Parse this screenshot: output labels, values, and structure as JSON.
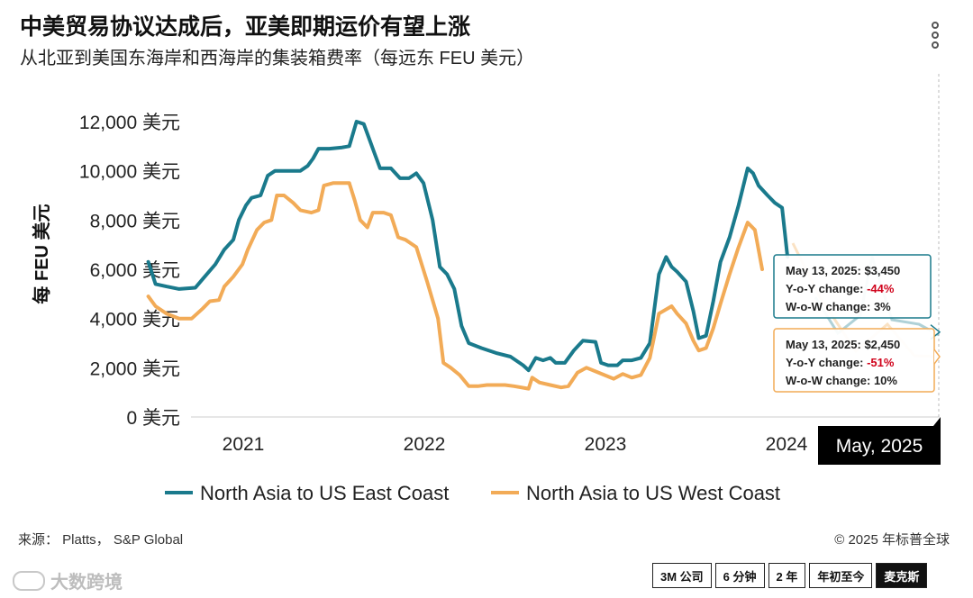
{
  "header": {
    "title": "中美贸易协议达成后，亚美即期运价有望上涨",
    "subtitle": "从北亚到美国东海岸和西海岸的集装箱费率（每远东 FEU 美元）"
  },
  "chart_data": {
    "type": "line",
    "ylabel": "每 FEU 美元",
    "xlabel": "",
    "ylim": [
      0,
      12000
    ],
    "yticks": [
      {
        "value": 0,
        "label": "0 美元"
      },
      {
        "value": 2000,
        "label": "2,000 美元"
      },
      {
        "value": 4000,
        "label": "4,000 美元"
      },
      {
        "value": 6000,
        "label": "6,000 美元"
      },
      {
        "value": 8000,
        "label": "8,000 美元"
      },
      {
        "value": 10000,
        "label": "10,000 美元"
      },
      {
        "value": 12000,
        "label": "12,000 美元"
      }
    ],
    "xlim": [
      2020.55,
      2025.37
    ],
    "xticks": [
      {
        "value": 2021,
        "label": "2021"
      },
      {
        "value": 2022,
        "label": "2022"
      },
      {
        "value": 2023,
        "label": "2023"
      },
      {
        "value": 2024,
        "label": "2024"
      }
    ],
    "crosshair_label": "May, 2025",
    "legend_position": "bottom",
    "colors": {
      "east": "#1a7a8c",
      "west": "#f2ab57"
    },
    "series": [
      {
        "name": "North Asia to US East Coast",
        "key": "east",
        "points": [
          [
            2020.58,
            6300
          ],
          [
            2020.62,
            5400
          ],
          [
            2020.68,
            5300
          ],
          [
            2020.75,
            5200
          ],
          [
            2020.84,
            5250
          ],
          [
            2020.88,
            5600
          ],
          [
            2020.95,
            6200
          ],
          [
            2021.0,
            6800
          ],
          [
            2021.05,
            7200
          ],
          [
            2021.08,
            8000
          ],
          [
            2021.12,
            8600
          ],
          [
            2021.15,
            8900
          ],
          [
            2021.2,
            9000
          ],
          [
            2021.24,
            9800
          ],
          [
            2021.28,
            10000
          ],
          [
            2021.35,
            10000
          ],
          [
            2021.42,
            10000
          ],
          [
            2021.46,
            10200
          ],
          [
            2021.49,
            10500
          ],
          [
            2021.52,
            10900
          ],
          [
            2021.58,
            10900
          ],
          [
            2021.65,
            10950
          ],
          [
            2021.69,
            11000
          ],
          [
            2021.73,
            12000
          ],
          [
            2021.77,
            11900
          ],
          [
            2021.8,
            11300
          ],
          [
            2021.83,
            10700
          ],
          [
            2021.86,
            10100
          ],
          [
            2021.92,
            10100
          ],
          [
            2021.97,
            9700
          ],
          [
            2022.02,
            9700
          ],
          [
            2022.06,
            9900
          ],
          [
            2022.1,
            9500
          ],
          [
            2022.15,
            8000
          ],
          [
            2022.19,
            6100
          ],
          [
            2022.23,
            5800
          ],
          [
            2022.27,
            5200
          ],
          [
            2022.31,
            3700
          ],
          [
            2022.35,
            3000
          ],
          [
            2022.42,
            2800
          ],
          [
            2022.5,
            2600
          ],
          [
            2022.58,
            2450
          ],
          [
            2022.65,
            2100
          ],
          [
            2022.68,
            1900
          ],
          [
            2022.72,
            2400
          ],
          [
            2022.76,
            2300
          ],
          [
            2022.8,
            2400
          ],
          [
            2022.83,
            2200
          ],
          [
            2022.88,
            2200
          ],
          [
            2022.93,
            2700
          ],
          [
            2022.98,
            3100
          ],
          [
            2023.05,
            3050
          ],
          [
            2023.08,
            2200
          ],
          [
            2023.12,
            2100
          ],
          [
            2023.17,
            2100
          ],
          [
            2023.2,
            2300
          ],
          [
            2023.25,
            2300
          ],
          [
            2023.3,
            2400
          ],
          [
            2023.35,
            3000
          ],
          [
            2023.4,
            5800
          ],
          [
            2023.44,
            6500
          ],
          [
            2023.47,
            6100
          ],
          [
            2023.5,
            5900
          ],
          [
            2023.55,
            5500
          ],
          [
            2023.59,
            4300
          ],
          [
            2023.62,
            3200
          ],
          [
            2023.66,
            3300
          ],
          [
            2023.7,
            4700
          ],
          [
            2023.74,
            6300
          ],
          [
            2023.79,
            7300
          ],
          [
            2023.84,
            8600
          ],
          [
            2023.89,
            10100
          ],
          [
            2023.92,
            9900
          ],
          [
            2023.95,
            9400
          ],
          [
            2024.0,
            9000
          ],
          [
            2024.04,
            8700
          ],
          [
            2024.08,
            8500
          ],
          [
            2024.11,
            6500
          ]
        ]
      },
      {
        "name": "North Asia to US West Coast",
        "key": "west",
        "points": [
          [
            2020.58,
            4900
          ],
          [
            2020.62,
            4500
          ],
          [
            2020.68,
            4200
          ],
          [
            2020.75,
            4000
          ],
          [
            2020.82,
            4000
          ],
          [
            2020.88,
            4400
          ],
          [
            2020.92,
            4700
          ],
          [
            2020.97,
            4750
          ],
          [
            2021.0,
            5300
          ],
          [
            2021.05,
            5700
          ],
          [
            2021.1,
            6200
          ],
          [
            2021.13,
            6800
          ],
          [
            2021.18,
            7600
          ],
          [
            2021.22,
            7900
          ],
          [
            2021.26,
            8000
          ],
          [
            2021.29,
            9000
          ],
          [
            2021.33,
            9000
          ],
          [
            2021.38,
            8700
          ],
          [
            2021.42,
            8400
          ],
          [
            2021.48,
            8300
          ],
          [
            2021.52,
            8400
          ],
          [
            2021.55,
            9400
          ],
          [
            2021.6,
            9500
          ],
          [
            2021.69,
            9500
          ],
          [
            2021.72,
            8800
          ],
          [
            2021.75,
            8000
          ],
          [
            2021.79,
            7700
          ],
          [
            2021.82,
            8300
          ],
          [
            2021.88,
            8300
          ],
          [
            2021.92,
            8200
          ],
          [
            2021.96,
            7300
          ],
          [
            2022.0,
            7200
          ],
          [
            2022.06,
            6900
          ],
          [
            2022.12,
            5500
          ],
          [
            2022.18,
            4000
          ],
          [
            2022.21,
            2200
          ],
          [
            2022.25,
            2000
          ],
          [
            2022.3,
            1700
          ],
          [
            2022.35,
            1250
          ],
          [
            2022.4,
            1250
          ],
          [
            2022.45,
            1300
          ],
          [
            2022.55,
            1300
          ],
          [
            2022.6,
            1250
          ],
          [
            2022.68,
            1150
          ],
          [
            2022.7,
            1600
          ],
          [
            2022.74,
            1400
          ],
          [
            2022.8,
            1300
          ],
          [
            2022.86,
            1200
          ],
          [
            2022.9,
            1250
          ],
          [
            2022.95,
            1800
          ],
          [
            2023.0,
            2000
          ],
          [
            2023.05,
            1850
          ],
          [
            2023.1,
            1700
          ],
          [
            2023.15,
            1550
          ],
          [
            2023.2,
            1750
          ],
          [
            2023.25,
            1600
          ],
          [
            2023.3,
            1700
          ],
          [
            2023.35,
            2400
          ],
          [
            2023.4,
            4200
          ],
          [
            2023.47,
            4500
          ],
          [
            2023.5,
            4200
          ],
          [
            2023.55,
            3800
          ],
          [
            2023.59,
            3100
          ],
          [
            2023.62,
            2700
          ],
          [
            2023.66,
            2800
          ],
          [
            2023.7,
            3600
          ],
          [
            2023.74,
            4600
          ],
          [
            2023.79,
            5800
          ],
          [
            2023.84,
            6900
          ],
          [
            2023.89,
            7900
          ],
          [
            2023.93,
            7600
          ],
          [
            2023.97,
            6000
          ]
        ]
      }
    ],
    "tooltips": [
      {
        "date": "May 13, 2025:",
        "price": "$3,450",
        "yoy_label": "Y-o-Y change:",
        "yoy": "-44%",
        "wow_label": "W-o-W change:",
        "wow": "3%",
        "value": 3450
      },
      {
        "date": "May 13, 2025:",
        "price": "$2,450",
        "yoy_label": "Y-o-Y change:",
        "yoy": "-51%",
        "wow_label": "W-o-W change:",
        "wow": "10%",
        "value": 2450
      }
    ],
    "negative_color": "#d0021b"
  },
  "footer": {
    "source": "来源：  Platts，  S&P Global",
    "copyright": "© 2025 年标普全球"
  },
  "watermark": "大数跨境",
  "range_buttons": [
    "3M 公司",
    "6 分钟",
    "2 年",
    "年初至今",
    "麦克斯"
  ],
  "active_range": 4
}
